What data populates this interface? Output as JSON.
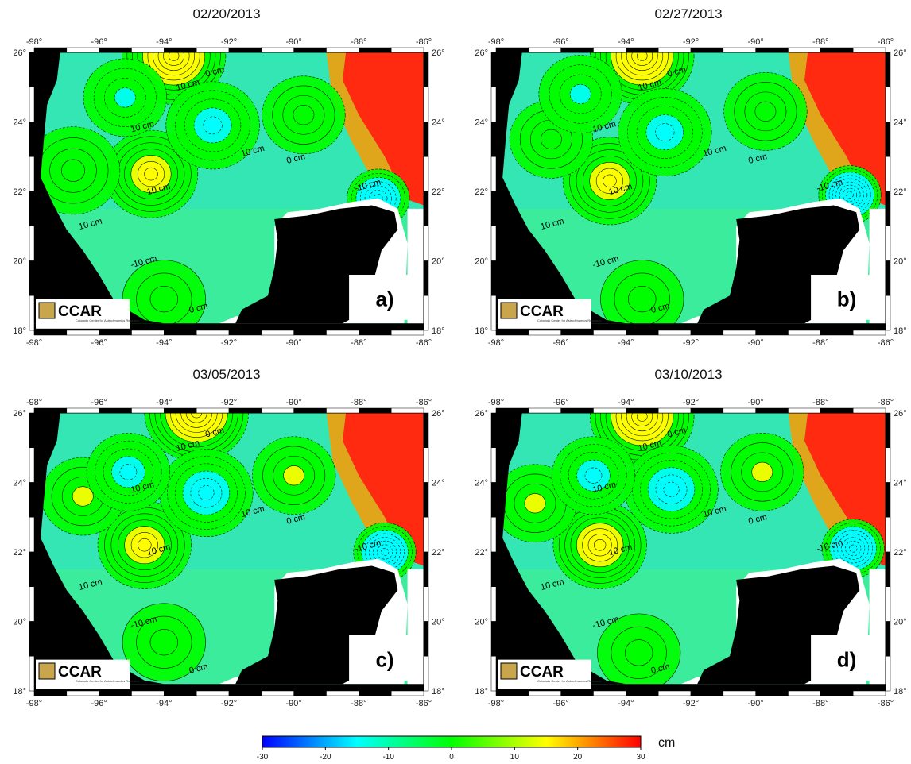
{
  "panels": [
    {
      "date": "02/20/2013",
      "label": "a)"
    },
    {
      "date": "02/27/2013",
      "label": "b)"
    },
    {
      "date": "03/05/2013",
      "label": "c)"
    },
    {
      "date": "03/10/2013",
      "label": "d)"
    }
  ],
  "map": {
    "lon_ticks": [
      "-98°",
      "-96°",
      "-94°",
      "-92°",
      "-90°",
      "-88°",
      "-86°"
    ],
    "lat_ticks": [
      "26°",
      "24°",
      "22°",
      "20°",
      "18°"
    ],
    "contour_labels": [
      "10 cm",
      "0 cm",
      "-10 cm"
    ]
  },
  "logo": {
    "text": "CCAR",
    "subtitle": "Colorado Center for Astrodynamics Research"
  },
  "colorbar": {
    "ticks": [
      "-30",
      "-20",
      "-10",
      "0",
      "10",
      "20",
      "30"
    ],
    "unit": "cm",
    "stops": [
      "#0000ff",
      "#00ffff",
      "#00ff00",
      "#ffff00",
      "#ff0000"
    ]
  }
}
